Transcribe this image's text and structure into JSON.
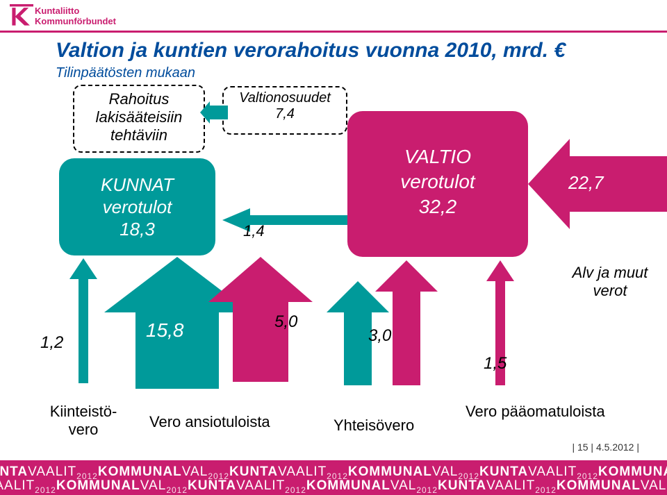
{
  "logo": {
    "line1": "Kuntaliitto",
    "line2": "Kommunförbundet"
  },
  "title": "Valtion ja kuntien verorahoitus vuonna 2010, mrd. €",
  "subtitle": "Tilinpäätösten mukaan",
  "rahoitus": {
    "l1": "Rahoitus",
    "l2": "lakisääteisiin",
    "l3": "tehtäviin"
  },
  "valtionosuudet": {
    "label": "Valtionosuudet",
    "value": "7,4"
  },
  "kunnat": {
    "l1": "KUNNAT",
    "l2": "verotulot",
    "l3": "18,3"
  },
  "valtio": {
    "l1": "VALTIO",
    "l2": "verotulot",
    "l3": "32,2"
  },
  "right_value": "22,7",
  "alv_label_l1": "Alv ja muut",
  "alv_label_l2": "verot",
  "flow_1_4": "1,4",
  "flow_1_2": "1,2",
  "flow_15_8": "15,8",
  "flow_5_0": "5,0",
  "flow_3_0": "3,0",
  "flow_1_5": "1,5",
  "bottom_kiinteisto_l1": "Kiinteistö-",
  "bottom_kiinteisto_l2": "vero",
  "bottom_ansio": "Vero ansiotuloista",
  "bottom_yhteiso": "Yhteisövero",
  "bottom_paaoma": "Vero pääomatuloista",
  "page_num": "15",
  "page_date": "4.5.2012",
  "colors": {
    "teal": "#009a9a",
    "magenta": "#c91d6f",
    "blue_title": "#004c9c"
  },
  "footer_repeat": "KUNTAVAALIT KOMMUNALVAL"
}
